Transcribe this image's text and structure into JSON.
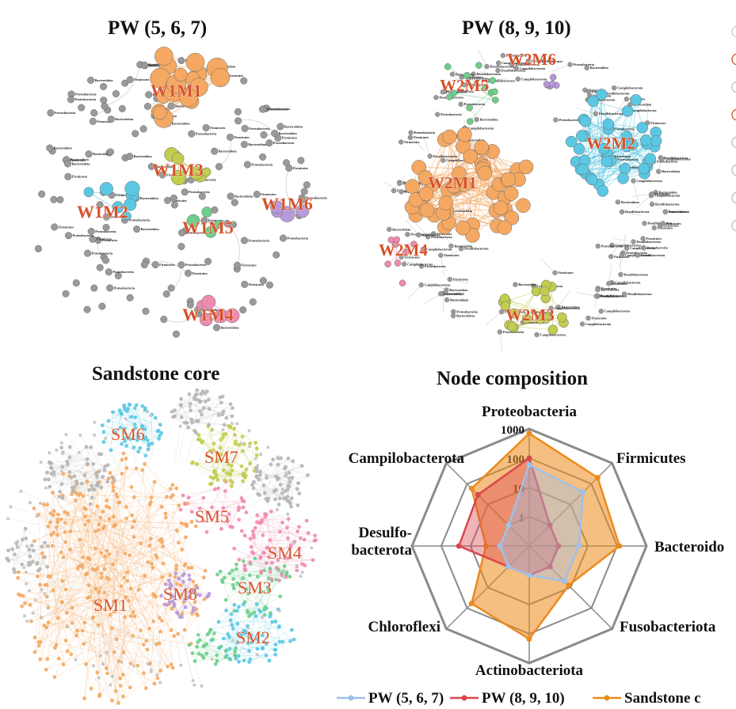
{
  "panels": {
    "pw567": {
      "title": "PW (5, 6, 7)",
      "modules": [
        "W1M1",
        "W1M2",
        "W1M3",
        "W1M4",
        "W1M5",
        "W1M6"
      ],
      "node_names": [
        "Proteobacteria",
        "Firmicutes",
        "Bacteroidota"
      ]
    },
    "pw8910": {
      "title": "PW (8, 9, 10)",
      "modules": [
        "W2M1",
        "W2M2",
        "W2M3",
        "W2M4",
        "W2M5",
        "W2M6"
      ],
      "node_names": [
        "Proteobacteria",
        "Firmicutes",
        "Bacteroidota",
        "Campilobacterota",
        "Desulfobacterota"
      ]
    },
    "sandstone": {
      "title": "Sandstone core",
      "modules": [
        "SM1",
        "SM2",
        "SM3",
        "SM4",
        "SM5",
        "SM6",
        "SM7",
        "SM8"
      ]
    }
  },
  "colors": {
    "module_orange": "#f4a862",
    "module_blue": "#5bc8e3",
    "module_olive": "#c2cc4e",
    "module_pink": "#ef8bb0",
    "module_green": "#6dcf8a",
    "module_purple": "#b69ad9",
    "other_gray": "#9a9a9a",
    "label_red": "#d6512a",
    "pw567_line": "#9ec1ea",
    "pw8910_line": "#d9474d",
    "sandstone_line": "#ec8a1b"
  },
  "chart_data": {
    "type": "radar",
    "title": "Node composition",
    "scale": "log",
    "ticks": [
      "1",
      "10",
      "100",
      "1000"
    ],
    "axes": [
      "Proteobacteria",
      "Firmicutes",
      "Bacteroidota",
      "Fusobacteriota",
      "Actinobacteriota",
      "Chloroflexi",
      "Desulfobacterota",
      "Campilobacterota"
    ],
    "axis_labels": [
      "Proteobacteria",
      "Firmicutes",
      "Bacteroido",
      "Fusobacteriota",
      "Actinobacteriota",
      "Chloroflexi",
      "Desulfo-\nbacterota",
      "Campilobacterota"
    ],
    "series": [
      {
        "name": "PW (5, 6, 7)",
        "legend_label": "PW (5, 6, 7)",
        "color": "#9ec1ea",
        "values": [
          60,
          40,
          5,
          5,
          1,
          1,
          1,
          1
        ]
      },
      {
        "name": "PW (8, 9, 10)",
        "legend_label": "PW (8, 9, 10)",
        "color": "#d9474d",
        "values": [
          100,
          1,
          1,
          1,
          1,
          1,
          25,
          30
        ]
      },
      {
        "name": "Sandstone core",
        "legend_label": "Sandstone c",
        "color": "#ec8a1b",
        "values": [
          700,
          200,
          120,
          8,
          150,
          60,
          3,
          60
        ]
      }
    ]
  }
}
